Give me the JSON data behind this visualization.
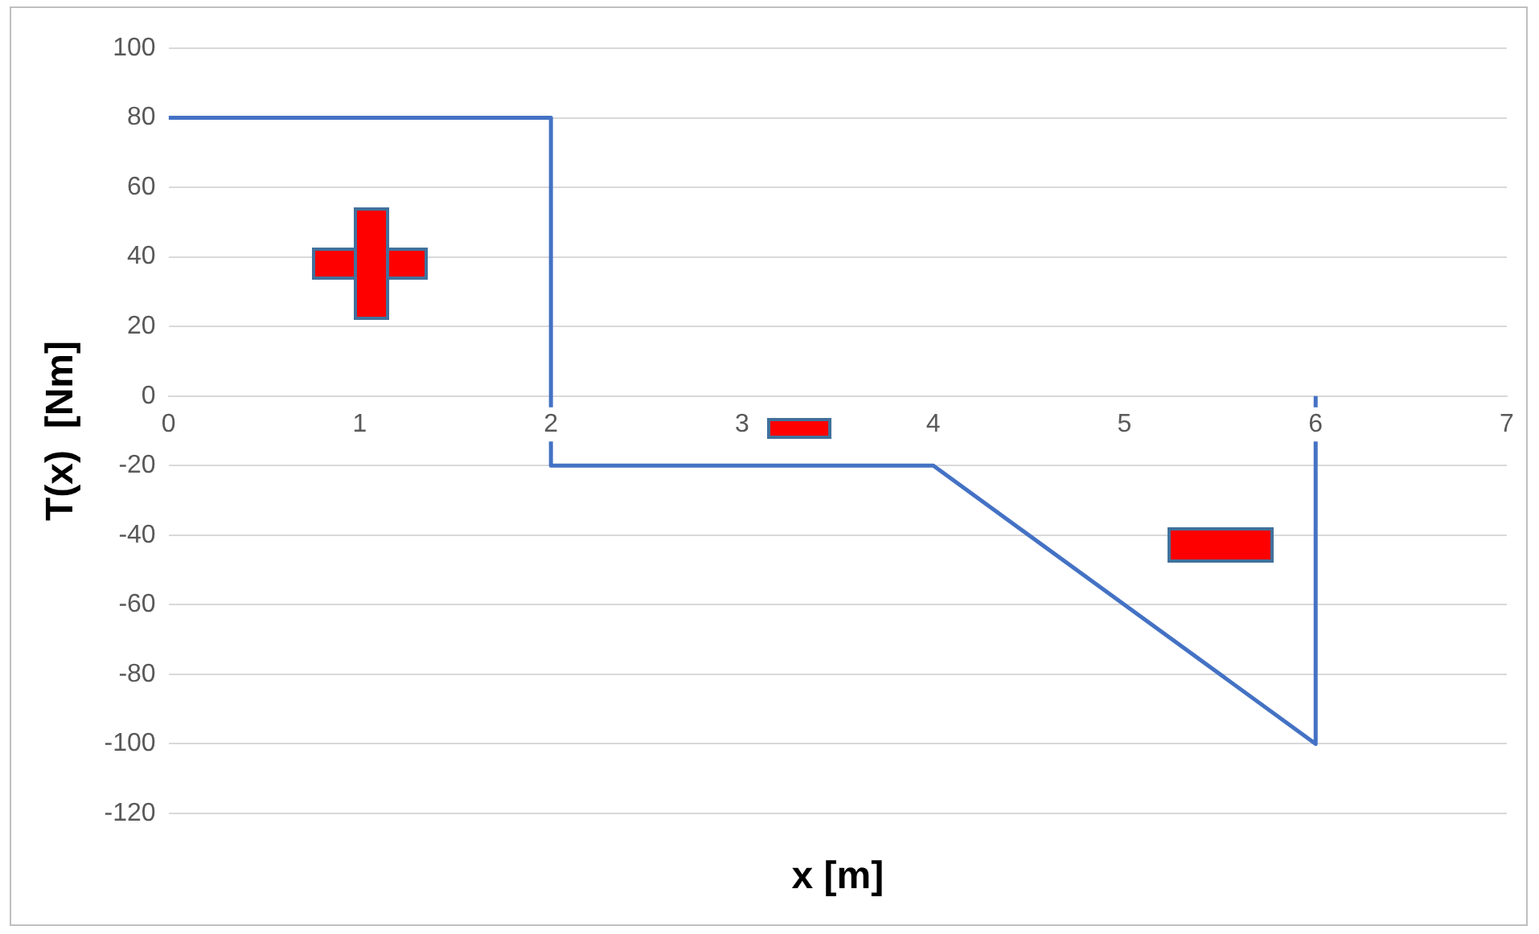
{
  "chart_data": {
    "type": "line",
    "xlabel": "x [m]",
    "ylabel": "T(x)  [Nm]",
    "x": [
      0,
      2,
      2,
      4,
      6,
      6
    ],
    "series": [
      {
        "color": "#4472c4",
        "values": [
          80,
          80,
          -20,
          -20,
          -100,
          0
        ]
      }
    ],
    "xlim": [
      0,
      7
    ],
    "xticks": [
      0,
      1,
      2,
      3,
      4,
      5,
      6,
      7
    ],
    "ylim": [
      -120,
      100
    ],
    "yticks": [
      -120,
      -100,
      -80,
      -60,
      -40,
      -20,
      0,
      20,
      40,
      60,
      80,
      100
    ],
    "grid": "y",
    "legend": false,
    "marker": "none",
    "line_style": "solid"
  }
}
